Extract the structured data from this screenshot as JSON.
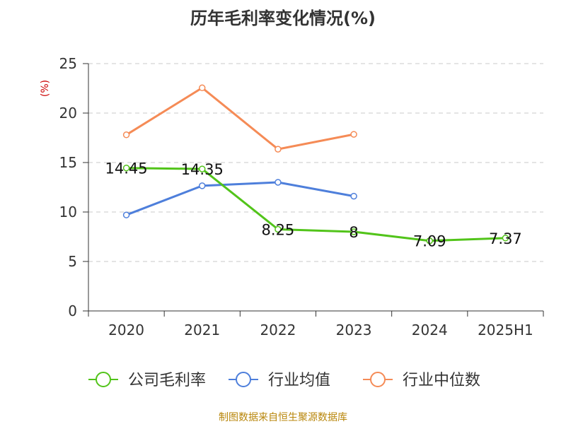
{
  "chart_data": {
    "type": "line",
    "title": "历年毛利率变化情况(%)",
    "ylabel": "(%)",
    "xlabel": "",
    "categories": [
      "2020",
      "2021",
      "2022",
      "2023",
      "2024",
      "2025H1"
    ],
    "ylim": [
      0,
      25
    ],
    "yticks": [
      0,
      5,
      10,
      15,
      20,
      25
    ],
    "grid": true,
    "legend_position": "bottom",
    "series": [
      {
        "name": "公司毛利率",
        "color": "#52c41a",
        "values": [
          14.45,
          14.35,
          8.25,
          8,
          7.09,
          7.37
        ],
        "labels": [
          "14.45",
          "14.35",
          "8.25",
          "8",
          "7.09",
          "7.37"
        ]
      },
      {
        "name": "行业均值",
        "color": "#4e7fdb",
        "values": [
          9.7,
          12.65,
          13.0,
          11.6,
          null,
          null
        ]
      },
      {
        "name": "行业中位数",
        "color": "#f58b56",
        "values": [
          17.8,
          22.55,
          16.35,
          17.85,
          null,
          null
        ]
      }
    ]
  },
  "source_note": "制图数据来自恒生聚源数据库"
}
